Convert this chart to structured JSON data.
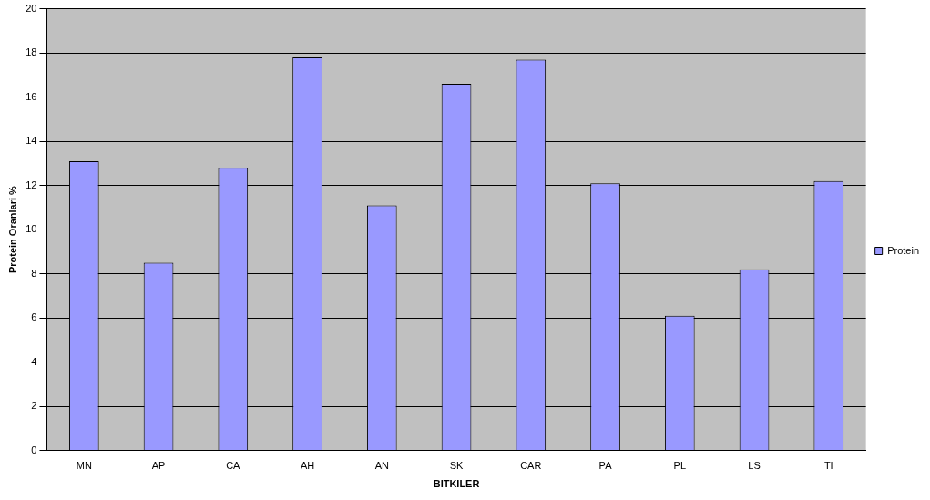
{
  "chart_data": {
    "type": "bar",
    "xlabel": "BITKILER",
    "ylabel": "Protein Oranlari %",
    "categories": [
      "MN",
      "AP",
      "CA",
      "AH",
      "AN",
      "SK",
      "CAR",
      "PA",
      "PL",
      "LS",
      "TI"
    ],
    "series": [
      {
        "name": "Protein",
        "color": "#9999ff",
        "values": [
          13.1,
          8.5,
          12.8,
          17.8,
          11.1,
          16.6,
          17.7,
          12.1,
          6.1,
          8.2,
          12.2
        ]
      }
    ],
    "ylim": [
      0,
      20
    ],
    "yticks": [
      0,
      2,
      4,
      6,
      8,
      10,
      12,
      14,
      16,
      18,
      20
    ],
    "grid": "y",
    "legend": "right"
  }
}
